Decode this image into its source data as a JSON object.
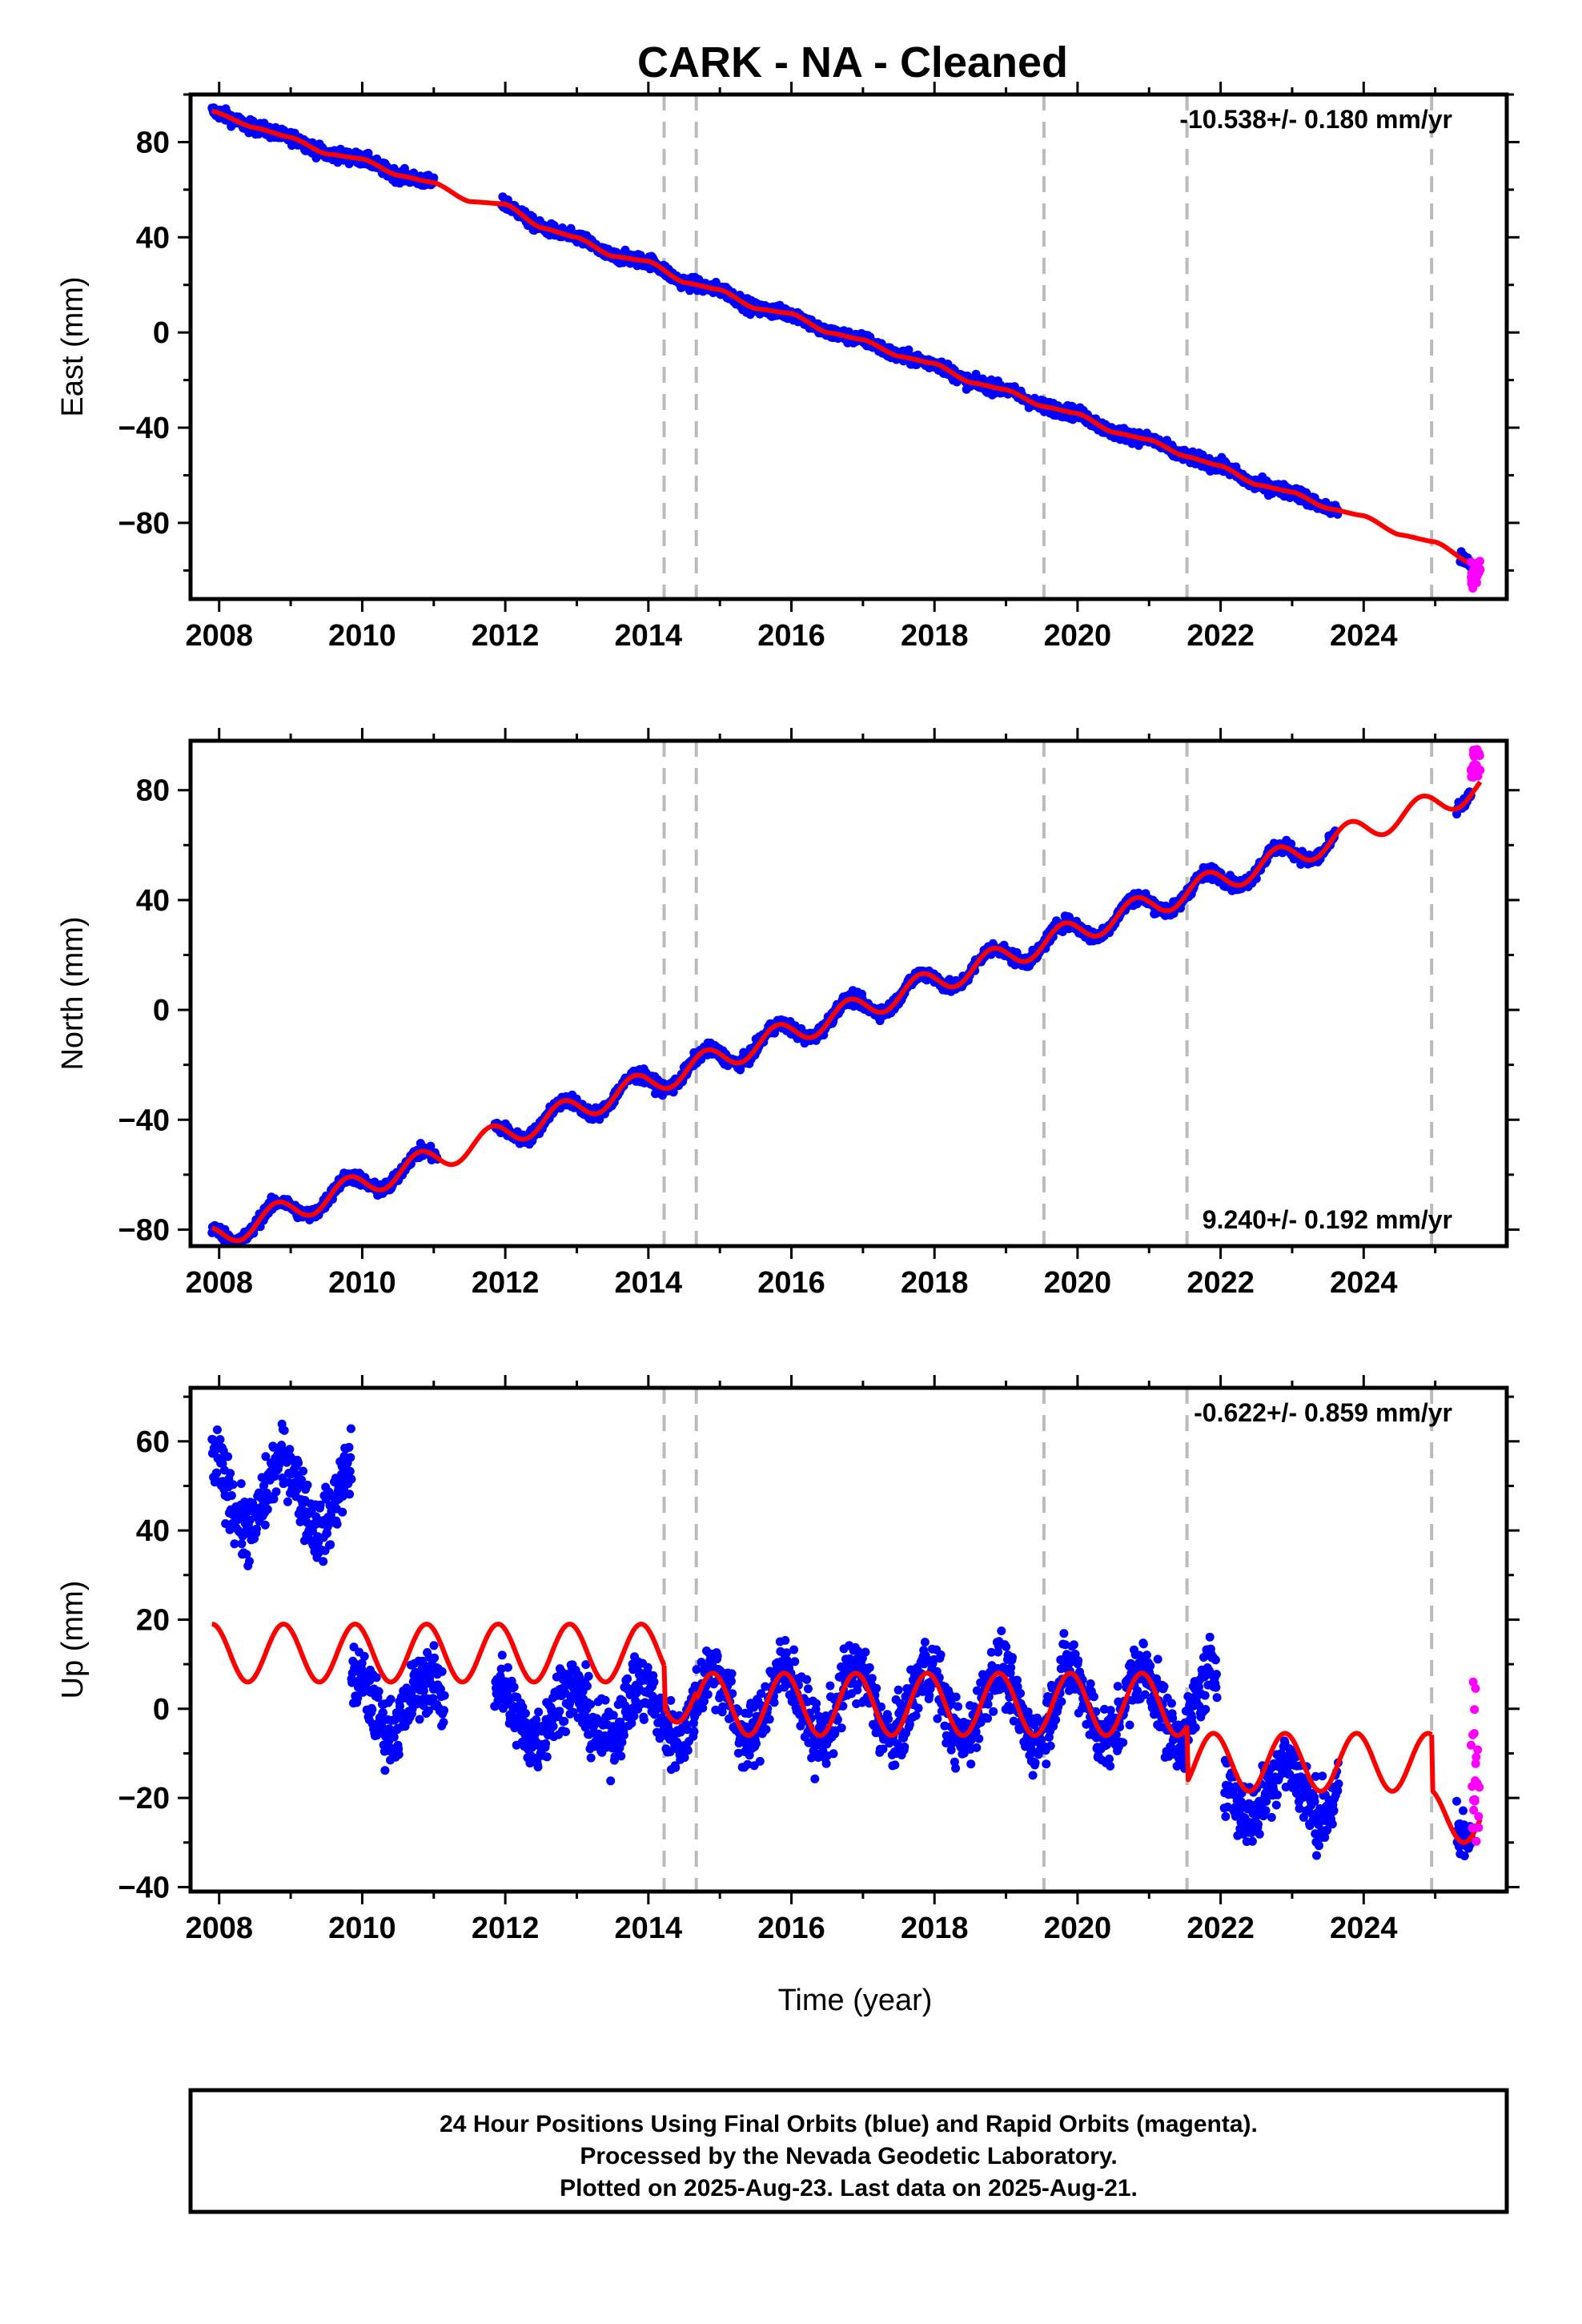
{
  "title": "CARK  - NA - Cleaned",
  "xlabel": "Time (year)",
  "footer": {
    "line1": "24 Hour Positions Using Final Orbits (blue) and Rapid Orbits (magenta).",
    "line2": "Processed by the Nevada Geodetic Laboratory.",
    "line3": "Plotted on 2025-Aug-23. Last data on 2025-Aug-21."
  },
  "colors": {
    "final": "#0000ff",
    "rapid": "#ff00ff",
    "model": "#ff0000",
    "event_lines": "#bbbbbb"
  },
  "chart_data": [
    {
      "type": "scatter",
      "name": "east",
      "ylabel": "East (mm)",
      "rate_label": "-10.538+/- 0.180 mm/yr",
      "rate_position": "top-right",
      "xlim": [
        2007.6,
        2026.0
      ],
      "ylim": [
        -112,
        100
      ],
      "x_ticks": [
        2008,
        2010,
        2012,
        2014,
        2016,
        2018,
        2020,
        2022,
        2024
      ],
      "y_ticks": [
        80,
        40,
        0,
        -40,
        -80
      ],
      "y_tick_labels": [
        "80",
        "40",
        "0",
        "−40",
        "−80"
      ],
      "event_lines": [
        2014.22,
        2014.67,
        2019.53,
        2021.53,
        2024.95
      ],
      "model_x": [
        2007.9,
        2008.5,
        2009.0,
        2009.5,
        2010.0,
        2010.5,
        2011.0,
        2011.5,
        2012.0,
        2012.5,
        2013.0,
        2013.5,
        2014.0,
        2014.5,
        2015.0,
        2015.5,
        2016.0,
        2016.5,
        2017.0,
        2017.5,
        2018.0,
        2018.5,
        2019.0,
        2019.5,
        2020.0,
        2020.5,
        2021.0,
        2021.5,
        2022.0,
        2022.5,
        2023.0,
        2023.5,
        2024.0,
        2024.5,
        2025.0,
        2025.5,
        2025.63
      ],
      "model_y": [
        93,
        86,
        82,
        75,
        73,
        66,
        63,
        55,
        54,
        44,
        40,
        32,
        30,
        21,
        18,
        10,
        8,
        0,
        -3,
        -10,
        -13,
        -21,
        -24,
        -31,
        -34,
        -42,
        -45,
        -52,
        -56,
        -64,
        -67,
        -74,
        -77,
        -85,
        -88,
        -97,
        -99
      ],
      "final_segments": [
        {
          "x0": 2007.9,
          "x1": 2011.0
        },
        {
          "x0": 2011.95,
          "x1": 2023.65
        },
        {
          "x0": 2025.35,
          "x1": 2025.5
        }
      ],
      "seasonal_amp": 0,
      "noise": 2.5,
      "rapid": {
        "x0": 2025.5,
        "x1": 2025.63,
        "ymin": -108,
        "ymax": -95
      }
    },
    {
      "type": "scatter",
      "name": "north",
      "ylabel": "North (mm)",
      "rate_label": "9.240+/- 0.192 mm/yr",
      "rate_position": "bottom-right",
      "xlim": [
        2007.6,
        2026.0
      ],
      "ylim": [
        -86,
        98
      ],
      "x_ticks": [
        2008,
        2010,
        2012,
        2014,
        2016,
        2018,
        2020,
        2022,
        2024
      ],
      "y_ticks": [
        80,
        40,
        0,
        -40,
        -80
      ],
      "y_tick_labels": [
        "80",
        "40",
        "0",
        "−40",
        "−80"
      ],
      "event_lines": [
        2014.22,
        2014.67,
        2019.53,
        2021.53,
        2024.95
      ],
      "trend": {
        "slope": 9.24,
        "offset": -83,
        "x_ref": 2007.9,
        "amp": 4.5,
        "phase": 0.55
      },
      "model_x": [],
      "model_y": [],
      "final_segments": [
        {
          "x0": 2007.9,
          "x1": 2011.05
        },
        {
          "x0": 2011.85,
          "x1": 2023.6
        },
        {
          "x0": 2025.3,
          "x1": 2025.5
        }
      ],
      "seasonal_amp": 4.5,
      "noise": 2.2,
      "rapid": {
        "x0": 2025.5,
        "x1": 2025.63,
        "ymin": 84,
        "ymax": 95
      }
    },
    {
      "type": "scatter",
      "name": "up",
      "ylabel": "Up (mm)",
      "rate_label": "-0.622+/- 0.859 mm/yr",
      "rate_position": "top-right",
      "xlim": [
        2007.6,
        2026.0
      ],
      "ylim": [
        -41,
        72
      ],
      "x_ticks": [
        2008,
        2010,
        2012,
        2014,
        2016,
        2018,
        2020,
        2022,
        2024
      ],
      "y_ticks": [
        60,
        40,
        20,
        0,
        -20,
        -40
      ],
      "y_tick_labels": [
        "60",
        "40",
        "20",
        "0",
        "−20",
        "−40"
      ],
      "event_lines": [
        2014.22,
        2014.67,
        2019.53,
        2021.53,
        2024.95
      ],
      "model_segments": [
        {
          "x0": 2007.9,
          "x1": 2014.22,
          "base": 12.5,
          "amp": 6.5
        },
        {
          "x0": 2014.22,
          "x1": 2014.67,
          "base": 3,
          "amp": 6.0
        },
        {
          "x0": 2014.67,
          "x1": 2019.53,
          "base": 1,
          "amp": 7.0
        },
        {
          "x0": 2019.53,
          "x1": 2021.53,
          "base": 1,
          "amp": 7.0
        },
        {
          "x0": 2021.53,
          "x1": 2024.95,
          "base": -12,
          "amp": 6.5
        },
        {
          "x0": 2024.95,
          "x1": 2025.63,
          "base": -24,
          "amp": 6.0
        }
      ],
      "final_segments": [
        {
          "x0": 2007.9,
          "x1": 2009.85,
          "base": 48,
          "amp": 8
        },
        {
          "x0": 2009.85,
          "x1": 2011.15,
          "base": 1,
          "amp": 6
        },
        {
          "x0": 2011.85,
          "x1": 2014.22,
          "base": -1,
          "amp": 6
        },
        {
          "x0": 2014.22,
          "x1": 2021.95,
          "base": 1,
          "amp": 8
        },
        {
          "x0": 2022.05,
          "x1": 2023.65,
          "base": -18,
          "amp": 6
        },
        {
          "x0": 2025.3,
          "x1": 2025.5,
          "base": -25,
          "amp": 4
        }
      ],
      "noise": 5.0,
      "rapid": {
        "x0": 2025.5,
        "x1": 2025.63,
        "ymin": -30,
        "ymax": 8
      }
    }
  ]
}
